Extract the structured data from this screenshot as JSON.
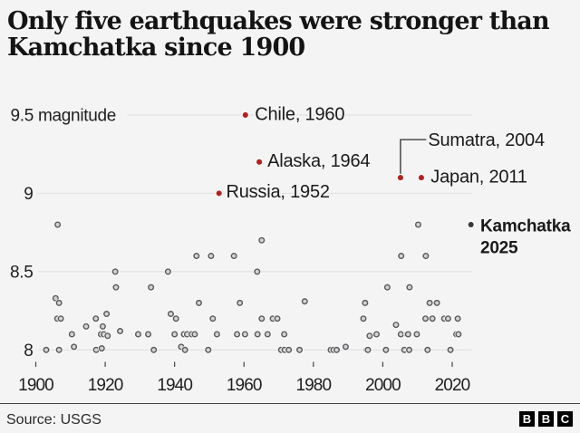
{
  "header": {
    "title": "Only five earthquakes were stronger than Kamchatka since 1900"
  },
  "footer": {
    "source": "Source: USGS",
    "logo_letters": [
      "B",
      "B",
      "C"
    ]
  },
  "chart_data": {
    "type": "scatter",
    "title": "Only five earthquakes were stronger than Kamchatka since 1900",
    "xlabel": "",
    "ylabel": "magnitude",
    "xlim": [
      1898,
      2028
    ],
    "ylim": [
      7.95,
      9.6
    ],
    "grid": true,
    "x_ticks": [
      1900,
      1920,
      1940,
      1960,
      1980,
      2000,
      2020
    ],
    "y_ticks": [
      {
        "value": 9.5,
        "label": "9.5 magnitude"
      },
      {
        "value": 9,
        "label": "9"
      },
      {
        "value": 8.5,
        "label": "8.5"
      },
      {
        "value": 8,
        "label": "8"
      }
    ],
    "colors": {
      "background": "#f4f4f4",
      "gridline": "#e1e1e2",
      "point_fill": "#d4d4d6",
      "point_stroke": "#5b5b5e",
      "point_halo": "#fdfdfd",
      "highlight_red": "#b0231f",
      "focus_dark": "#3a3a3a",
      "text_dark": "#1a1a1a",
      "axis_text": "#202020"
    },
    "highlights": [
      {
        "label": "Chile, 1960",
        "year": 1960.4,
        "magnitude": 9.5,
        "color": "#b0231f",
        "dx": 10.5,
        "dy": 5.5
      },
      {
        "label": "Alaska, 1964",
        "year": 1964.4,
        "magnitude": 9.2,
        "color": "#b0231f",
        "dx": 9,
        "dy": 5.2
      },
      {
        "label": "Russia, 1952",
        "year": 1952.8,
        "magnitude": 9.0,
        "color": "#b0231f",
        "dx": 7.8,
        "dy": 4.5
      },
      {
        "label": "Sumatra, 2004",
        "year": 2005.1,
        "magnitude": 9.1,
        "color": "#b0231f",
        "dx": 30.4,
        "dy": -35.2,
        "leader": true
      },
      {
        "label": "Japan, 2011",
        "year": 2011.1,
        "magnitude": 9.1,
        "color": "#b0231f",
        "dx": 10.4,
        "dy": 5.6
      },
      {
        "label": "Kamchatka 2025",
        "lines": [
          "Kamchatka",
          "2025"
        ],
        "year": 2025.4,
        "magnitude": 8.8,
        "color": "#3a3a3a",
        "dx": 10.3,
        "dy": 7.5,
        "bold": true
      }
    ],
    "points": [
      {
        "year": 1903.0,
        "magnitude": 8.0
      },
      {
        "year": 1905.7,
        "magnitude": 8.33
      },
      {
        "year": 1906.2,
        "magnitude": 8.2
      },
      {
        "year": 1906.3,
        "magnitude": 8.8
      },
      {
        "year": 1906.7,
        "magnitude": 8.3
      },
      {
        "year": 1906.7,
        "magnitude": 8.0
      },
      {
        "year": 1907.2,
        "magnitude": 8.2
      },
      {
        "year": 1910.4,
        "magnitude": 8.1
      },
      {
        "year": 1911.0,
        "magnitude": 8.02
      },
      {
        "year": 1914.5,
        "magnitude": 8.15
      },
      {
        "year": 1917.3,
        "magnitude": 8.2
      },
      {
        "year": 1917.4,
        "magnitude": 8.0
      },
      {
        "year": 1918.8,
        "magnitude": 8.1
      },
      {
        "year": 1919.0,
        "magnitude": 8.01
      },
      {
        "year": 1919.3,
        "magnitude": 8.15
      },
      {
        "year": 1919.6,
        "magnitude": 8.1
      },
      {
        "year": 1920.4,
        "magnitude": 8.23
      },
      {
        "year": 1920.7,
        "magnitude": 8.09
      },
      {
        "year": 1922.9,
        "magnitude": 8.5
      },
      {
        "year": 1923.1,
        "magnitude": 8.4
      },
      {
        "year": 1924.3,
        "magnitude": 8.12
      },
      {
        "year": 1929.5,
        "magnitude": 8.1
      },
      {
        "year": 1932.4,
        "magnitude": 8.1
      },
      {
        "year": 1933.2,
        "magnitude": 8.4
      },
      {
        "year": 1934.0,
        "magnitude": 8.0
      },
      {
        "year": 1938.1,
        "magnitude": 8.5
      },
      {
        "year": 1938.9,
        "magnitude": 8.23
      },
      {
        "year": 1940.0,
        "magnitude": 8.1
      },
      {
        "year": 1940.4,
        "magnitude": 8.2
      },
      {
        "year": 1941.9,
        "magnitude": 8.02
      },
      {
        "year": 1942.7,
        "magnitude": 8.1
      },
      {
        "year": 1943.0,
        "magnitude": 8.0
      },
      {
        "year": 1943.6,
        "magnitude": 8.1
      },
      {
        "year": 1944.9,
        "magnitude": 8.1
      },
      {
        "year": 1945.8,
        "magnitude": 8.1
      },
      {
        "year": 1946.3,
        "magnitude": 8.6
      },
      {
        "year": 1947.0,
        "magnitude": 8.3
      },
      {
        "year": 1949.7,
        "magnitude": 8.0
      },
      {
        "year": 1950.5,
        "magnitude": 8.6
      },
      {
        "year": 1951.0,
        "magnitude": 8.2
      },
      {
        "year": 1952.2,
        "magnitude": 8.1
      },
      {
        "year": 1957.1,
        "magnitude": 8.6
      },
      {
        "year": 1958.0,
        "magnitude": 8.1
      },
      {
        "year": 1958.8,
        "magnitude": 8.3
      },
      {
        "year": 1960.3,
        "magnitude": 8.1
      },
      {
        "year": 1963.8,
        "magnitude": 8.5
      },
      {
        "year": 1963.9,
        "magnitude": 8.1
      },
      {
        "year": 1965.1,
        "magnitude": 8.7
      },
      {
        "year": 1965.1,
        "magnitude": 8.2
      },
      {
        "year": 1966.8,
        "magnitude": 8.1
      },
      {
        "year": 1968.3,
        "magnitude": 8.2
      },
      {
        "year": 1969.6,
        "magnitude": 8.2
      },
      {
        "year": 1970.7,
        "magnitude": 8.0
      },
      {
        "year": 1971.6,
        "magnitude": 8.1
      },
      {
        "year": 1971.7,
        "magnitude": 8.0
      },
      {
        "year": 1972.9,
        "magnitude": 8.0
      },
      {
        "year": 1976.0,
        "magnitude": 8.0
      },
      {
        "year": 1977.5,
        "magnitude": 8.31
      },
      {
        "year": 1985.0,
        "magnitude": 8.0
      },
      {
        "year": 1985.8,
        "magnitude": 8.0
      },
      {
        "year": 1986.7,
        "magnitude": 8.0
      },
      {
        "year": 1989.3,
        "magnitude": 8.02
      },
      {
        "year": 1994.4,
        "magnitude": 8.2
      },
      {
        "year": 1994.9,
        "magnitude": 8.3
      },
      {
        "year": 1995.4,
        "magnitude": 8.0
      },
      {
        "year": 1995.7,
        "magnitude": 8.0
      },
      {
        "year": 1996.2,
        "magnitude": 8.09
      },
      {
        "year": 1998.2,
        "magnitude": 8.1
      },
      {
        "year": 2000.9,
        "magnitude": 8.0
      },
      {
        "year": 2001.3,
        "magnitude": 8.4
      },
      {
        "year": 2003.8,
        "magnitude": 8.16
      },
      {
        "year": 2005.2,
        "magnitude": 8.1
      },
      {
        "year": 2005.3,
        "magnitude": 8.6
      },
      {
        "year": 2006.2,
        "magnitude": 8.0
      },
      {
        "year": 2007.0,
        "magnitude": 8.1
      },
      {
        "year": 2007.3,
        "magnitude": 8.1
      },
      {
        "year": 2007.6,
        "magnitude": 8.0
      },
      {
        "year": 2007.7,
        "magnitude": 8.4
      },
      {
        "year": 2009.8,
        "magnitude": 8.1
      },
      {
        "year": 2010.2,
        "magnitude": 8.8
      },
      {
        "year": 2012.3,
        "magnitude": 8.2
      },
      {
        "year": 2012.4,
        "magnitude": 8.6
      },
      {
        "year": 2012.9,
        "magnitude": 8.0
      },
      {
        "year": 2013.5,
        "magnitude": 8.3
      },
      {
        "year": 2014.3,
        "magnitude": 8.2
      },
      {
        "year": 2015.6,
        "magnitude": 8.3
      },
      {
        "year": 2017.7,
        "magnitude": 8.2
      },
      {
        "year": 2018.8,
        "magnitude": 8.2
      },
      {
        "year": 2019.5,
        "magnitude": 8.0
      },
      {
        "year": 2021.2,
        "magnitude": 8.1
      },
      {
        "year": 2021.6,
        "magnitude": 8.2
      },
      {
        "year": 2021.8,
        "magnitude": 8.1
      }
    ]
  }
}
